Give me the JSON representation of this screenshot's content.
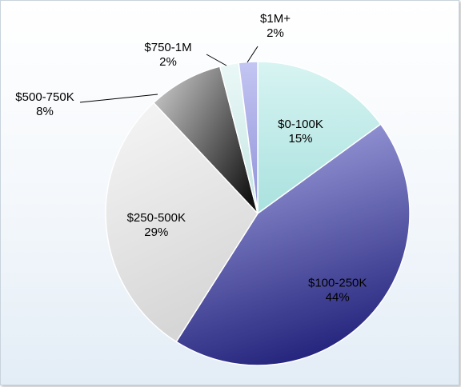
{
  "chart_data": {
    "type": "pie",
    "categories": [
      "$0-100K",
      "$100-250K",
      "$250-500K",
      "$500-750K",
      "$750-1M",
      "$1M+"
    ],
    "values": [
      15,
      44,
      29,
      8,
      2,
      2
    ],
    "value_labels": [
      "15%",
      "44%",
      "29%",
      "8%",
      "2%",
      "2%"
    ],
    "title": "",
    "legend": "none",
    "colors": {
      "slice_0": [
        "#d7f4f2",
        "#a9e1de"
      ],
      "slice_1": [
        "#a6a7e3",
        "#23237c"
      ],
      "slice_2": [
        "#f6f6f6",
        "#d0d0d0"
      ],
      "slice_3": [
        "#cfcfcf",
        "#1a1a1a"
      ],
      "slice_4": [
        "#e5f6f5",
        "#c4e5e3"
      ],
      "slice_5": [
        "#b9bbee",
        "#8f92d8"
      ]
    }
  }
}
